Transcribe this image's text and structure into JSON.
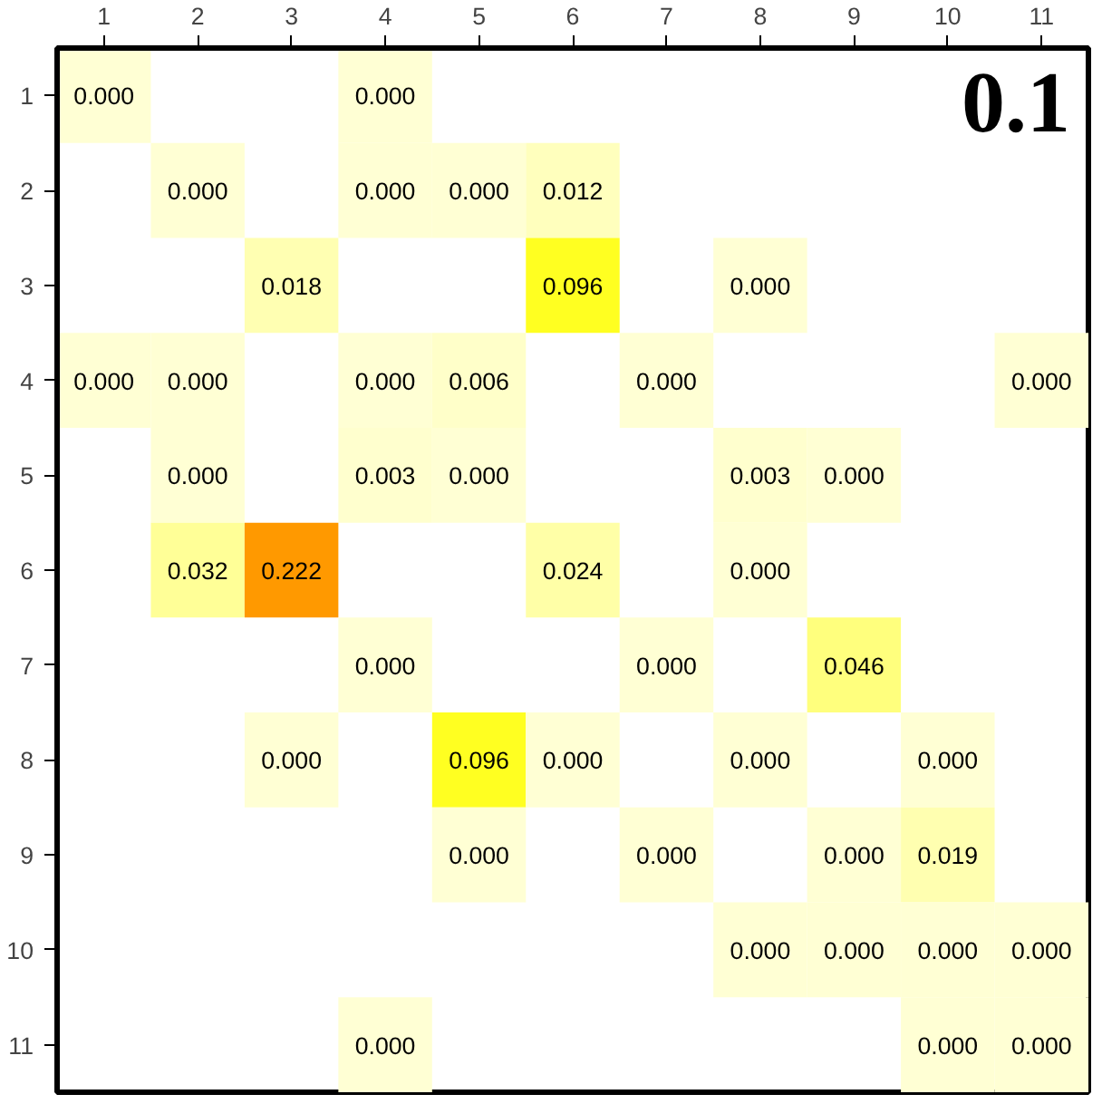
{
  "chart_data": {
    "type": "heatmap",
    "categories": [
      "1",
      "2",
      "3",
      "4",
      "5",
      "6",
      "7",
      "8",
      "9",
      "10",
      "11"
    ],
    "y_categories": [
      "1",
      "2",
      "3",
      "4",
      "5",
      "6",
      "7",
      "8",
      "9",
      "10",
      "11"
    ],
    "cells": [
      [
        0.0,
        null,
        null,
        0.0,
        null,
        null,
        null,
        null,
        null,
        null,
        null
      ],
      [
        null,
        0.0,
        null,
        0.0,
        0.0,
        0.012,
        null,
        null,
        null,
        null,
        null
      ],
      [
        null,
        null,
        0.018,
        null,
        null,
        0.096,
        null,
        0.0,
        null,
        null,
        null
      ],
      [
        0.0,
        0.0,
        null,
        0.0,
        0.006,
        null,
        0.0,
        null,
        null,
        null,
        0.0
      ],
      [
        null,
        0.0,
        null,
        0.003,
        0.0,
        null,
        null,
        0.003,
        0.0,
        null,
        null
      ],
      [
        null,
        0.032,
        0.222,
        null,
        null,
        0.024,
        null,
        0.0,
        null,
        null,
        null
      ],
      [
        null,
        null,
        null,
        0.0,
        null,
        null,
        0.0,
        null,
        0.046,
        null,
        null
      ],
      [
        null,
        null,
        0.0,
        null,
        0.096,
        0.0,
        null,
        0.0,
        null,
        0.0,
        null
      ],
      [
        null,
        null,
        null,
        null,
        0.0,
        null,
        0.0,
        null,
        0.0,
        0.019,
        null
      ],
      [
        null,
        null,
        null,
        null,
        null,
        null,
        null,
        0.0,
        0.0,
        0.0,
        0.0
      ],
      [
        null,
        null,
        null,
        0.0,
        null,
        null,
        null,
        null,
        null,
        0.0,
        0.0
      ]
    ],
    "cell_labels": [
      [
        "0.000",
        null,
        null,
        "0.000",
        null,
        null,
        null,
        null,
        null,
        null,
        null
      ],
      [
        null,
        "0.000",
        null,
        "0.000",
        "0.000",
        "0.012",
        null,
        null,
        null,
        null,
        null
      ],
      [
        null,
        null,
        "0.018",
        null,
        null,
        "0.096",
        null,
        "0.000",
        null,
        null,
        null
      ],
      [
        "0.000",
        "0.000",
        null,
        "0.000",
        "0.006",
        null,
        "0.000",
        null,
        null,
        null,
        "0.000"
      ],
      [
        null,
        "0.000",
        null,
        "0.003",
        "0.000",
        null,
        null,
        "0.003",
        "0.000",
        null,
        null
      ],
      [
        null,
        "0.032",
        "0.222",
        null,
        null,
        "0.024",
        null,
        "0.000",
        null,
        null,
        null
      ],
      [
        null,
        null,
        null,
        "0.000",
        null,
        null,
        "0.000",
        null,
        "0.046",
        null,
        null
      ],
      [
        null,
        null,
        "0.000",
        null,
        "0.096",
        "0.000",
        null,
        "0.000",
        null,
        "0.000",
        null
      ],
      [
        null,
        null,
        null,
        null,
        "0.000",
        null,
        "0.000",
        null,
        "0.000",
        "0.019",
        null
      ],
      [
        null,
        null,
        null,
        null,
        null,
        null,
        null,
        "0.000",
        "0.000",
        "0.000",
        "0.000"
      ],
      [
        null,
        null,
        null,
        "0.000",
        null,
        null,
        null,
        null,
        null,
        "0.000",
        "0.000"
      ]
    ],
    "annotations": [
      "0.1"
    ]
  }
}
